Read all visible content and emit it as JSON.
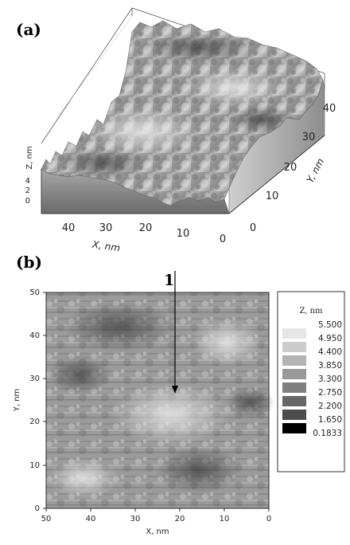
{
  "chart_data": [
    {
      "type": "surface3d",
      "panel_label": "(a)",
      "axes": {
        "x": {
          "label": "X, nm",
          "ticks": [
            "40",
            "30",
            "20",
            "10",
            "0"
          ]
        },
        "y": {
          "label": "Y, nm",
          "ticks": [
            "0",
            "10",
            "20",
            "30",
            "40"
          ]
        },
        "z": {
          "label": "Z, nm",
          "ticks": [
            "0",
            "2",
            "4"
          ]
        }
      }
    },
    {
      "type": "heatmap",
      "panel_label": "(b)",
      "xlabel": "X, nm",
      "ylabel": "Y, nm",
      "xlim": [
        50,
        0
      ],
      "ylim": [
        0,
        50
      ],
      "x_ticks": [
        "50",
        "40",
        "30",
        "20",
        "10",
        "0"
      ],
      "y_ticks": [
        "0",
        "10",
        "20",
        "30",
        "40",
        "50"
      ],
      "legend": {
        "title": "Z, nm",
        "levels": [
          "5.500",
          "4.950",
          "4.400",
          "3.850",
          "3.300",
          "2.750",
          "2.200",
          "1.650",
          "0.1833"
        ],
        "colors": [
          "#ffffff",
          "#e6e6e6",
          "#cccccc",
          "#b3b3b3",
          "#999999",
          "#7f7f7f",
          "#666666",
          "#4d4d4d",
          "#000000"
        ]
      },
      "annotation": {
        "text": "1"
      }
    }
  ]
}
